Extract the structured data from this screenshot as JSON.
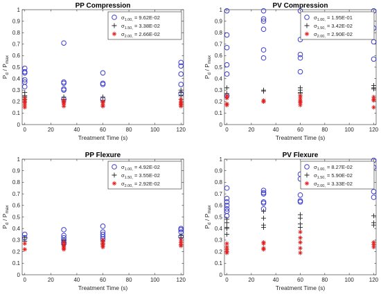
{
  "legend_symbols": [
    "σ",
    "σ",
    "σ"
  ],
  "chart_data": [
    {
      "type": "scatter",
      "title": "PP Compression",
      "xlabel": "Treatment Time (s)",
      "ylabel_main": "P",
      "ylabel_sub": "d",
      "ylabel_sep": " / ",
      "ylabel_main2": "P",
      "ylabel_sub2": "max",
      "xlim": [
        -2,
        122
      ],
      "ylim": [
        0,
        1
      ],
      "xticks": [
        "0",
        "20",
        "40",
        "60",
        "80",
        "100",
        "120"
      ],
      "xtick_values": [
        0,
        20,
        40,
        60,
        80,
        100,
        120
      ],
      "yticks": [
        "0",
        "0.1",
        "0.2",
        "0.3",
        "0.4",
        "0.5",
        "0.6",
        "0.7",
        "0.8",
        "0.9",
        "1"
      ],
      "ytick_values": [
        0,
        0.1,
        0.2,
        0.3,
        0.4,
        0.5,
        0.6,
        0.7,
        0.8,
        0.9,
        1
      ],
      "legend_position": "top-right",
      "series": [
        {
          "name_sub": "1.00",
          "name_suffix": "= 9.62E-02",
          "marker": "circle",
          "color": "#3a3acf",
          "x": [
            0,
            0,
            0,
            0,
            0,
            0,
            30,
            30,
            30,
            30,
            30,
            30,
            60,
            60,
            60,
            60,
            120,
            120,
            120,
            120,
            120
          ],
          "y": [
            0.49,
            0.46,
            0.45,
            0.39,
            0.37,
            0.33,
            0.71,
            0.37,
            0.36,
            0.31,
            0.3,
            0.22,
            0.45,
            0.36,
            0.35,
            0.22,
            0.54,
            0.51,
            0.44,
            0.35,
            0.27
          ]
        },
        {
          "name_sub": "1.50",
          "name_suffix": "= 3.38E-02",
          "marker": "plus",
          "color": "#222222",
          "x": [
            0,
            0,
            0,
            0,
            30,
            30,
            30,
            60,
            60,
            60,
            120,
            120,
            120,
            120
          ],
          "y": [
            0.28,
            0.25,
            0.24,
            0.22,
            0.24,
            0.22,
            0.2,
            0.24,
            0.21,
            0.2,
            0.3,
            0.28,
            0.25,
            0.22
          ]
        },
        {
          "name_sub": "2.00",
          "name_suffix": "= 2.66E-02",
          "marker": "star",
          "color": "#e02020",
          "x": [
            0,
            0,
            0,
            0,
            0,
            0,
            30,
            30,
            30,
            30,
            30,
            60,
            60,
            60,
            60,
            120,
            120,
            120,
            120,
            120,
            120
          ],
          "y": [
            0.23,
            0.21,
            0.2,
            0.19,
            0.17,
            0.15,
            0.21,
            0.2,
            0.19,
            0.18,
            0.16,
            0.2,
            0.19,
            0.17,
            0.16,
            0.22,
            0.2,
            0.19,
            0.18,
            0.17,
            0.16
          ]
        }
      ]
    },
    {
      "type": "scatter",
      "title": "PV Compression",
      "xlabel": "Treatment Time (s)",
      "ylabel_main": "P",
      "ylabel_sub": "d",
      "ylabel_sep": " / ",
      "ylabel_main2": "P",
      "ylabel_sub2": "max",
      "xlim": [
        -2,
        122
      ],
      "ylim": [
        0,
        1
      ],
      "xticks": [
        "0",
        "20",
        "40",
        "60",
        "80",
        "100",
        "120"
      ],
      "xtick_values": [
        0,
        20,
        40,
        60,
        80,
        100,
        120
      ],
      "yticks": [
        "0",
        "0.1",
        "0.2",
        "0.3",
        "0.4",
        "0.5",
        "0.6",
        "0.7",
        "0.8",
        "0.9",
        "1"
      ],
      "ytick_values": [
        0,
        0.1,
        0.2,
        0.3,
        0.4,
        0.5,
        0.6,
        0.7,
        0.8,
        0.9,
        1
      ],
      "legend_position": "top-right",
      "series": [
        {
          "name_sub": "1.00",
          "name_suffix": "= 1.95E-01",
          "marker": "circle",
          "color": "#3a3acf",
          "x": [
            0,
            0,
            0,
            0,
            0,
            0,
            30,
            30,
            30,
            30,
            30,
            30,
            60,
            60,
            60,
            60,
            60,
            120,
            120,
            120,
            120
          ],
          "y": [
            0.99,
            0.78,
            0.67,
            0.52,
            0.44,
            0.25,
            0.99,
            0.92,
            0.9,
            0.83,
            0.65,
            0.58,
            0.99,
            0.74,
            0.61,
            0.58,
            0.46,
            0.99,
            0.84,
            0.72,
            0.57
          ]
        },
        {
          "name_sub": "1.50",
          "name_suffix": "= 3.42E-02",
          "marker": "plus",
          "color": "#222222",
          "x": [
            0,
            0,
            0,
            30,
            30,
            60,
            60,
            60,
            60,
            120,
            120,
            120
          ],
          "y": [
            0.32,
            0.27,
            0.25,
            0.3,
            0.29,
            0.32,
            0.3,
            0.28,
            0.27,
            0.34,
            0.32,
            0.31
          ]
        },
        {
          "name_sub": "2.00",
          "name_suffix": "= 2.90E-02",
          "marker": "star",
          "color": "#e02020",
          "x": [
            0,
            0,
            0,
            0,
            30,
            30,
            30,
            60,
            60,
            60,
            60,
            60,
            60,
            120,
            120,
            120,
            120
          ],
          "y": [
            0.25,
            0.23,
            0.18,
            0.17,
            0.21,
            0.2,
            0.2,
            0.25,
            0.23,
            0.21,
            0.2,
            0.19,
            0.17,
            0.24,
            0.22,
            0.21,
            0.15
          ]
        }
      ]
    },
    {
      "type": "scatter",
      "title": "PP Flexure",
      "xlabel": "Treatment Time (s)",
      "ylabel_main": "P",
      "ylabel_sub": "d",
      "ylabel_sep": " / ",
      "ylabel_main2": "P",
      "ylabel_sub2": "max",
      "xlim": [
        -2,
        122
      ],
      "ylim": [
        0,
        1
      ],
      "xticks": [
        "0",
        "20",
        "40",
        "60",
        "80",
        "100",
        "120"
      ],
      "xtick_values": [
        0,
        20,
        40,
        60,
        80,
        100,
        120
      ],
      "yticks": [
        "0",
        "0.1",
        "0.2",
        "0.3",
        "0.4",
        "0.5",
        "0.6",
        "0.7",
        "0.8",
        "0.9",
        "1"
      ],
      "ytick_values": [
        0,
        0.1,
        0.2,
        0.3,
        0.4,
        0.5,
        0.6,
        0.7,
        0.8,
        0.9,
        1
      ],
      "legend_position": "top-right",
      "series": [
        {
          "name_sub": "1.00",
          "name_suffix": "= 4.92E-02",
          "marker": "circle",
          "color": "#3a3acf",
          "x": [
            0,
            0,
            30,
            30,
            30,
            30,
            30,
            30,
            60,
            60,
            60,
            60,
            60,
            120,
            120,
            120,
            120
          ],
          "y": [
            0.35,
            0.32,
            0.39,
            0.34,
            0.32,
            0.3,
            0.28,
            0.27,
            0.42,
            0.37,
            0.35,
            0.33,
            0.31,
            0.4,
            0.39,
            0.37,
            0.33
          ]
        },
        {
          "name_sub": "1.50",
          "name_suffix": "= 3.55E-02",
          "marker": "plus",
          "color": "#222222",
          "x": [
            0,
            0,
            30,
            30,
            30,
            60,
            60,
            60,
            120,
            120
          ],
          "y": [
            0.32,
            0.29,
            0.3,
            0.28,
            0.26,
            0.3,
            0.29,
            0.27,
            0.34,
            0.32
          ]
        },
        {
          "name_sub": "2.00",
          "name_suffix": "= 2.92E-02",
          "marker": "star",
          "color": "#e02020",
          "x": [
            0,
            0,
            30,
            30,
            30,
            30,
            30,
            30,
            60,
            60,
            60,
            60,
            60,
            120,
            120,
            120,
            120
          ],
          "y": [
            0.27,
            0.22,
            0.28,
            0.26,
            0.25,
            0.24,
            0.23,
            0.22,
            0.3,
            0.28,
            0.26,
            0.25,
            0.24,
            0.3,
            0.28,
            0.26,
            0.25
          ]
        }
      ]
    },
    {
      "type": "scatter",
      "title": "PV Flexure",
      "xlabel": "Treatment Time (s)",
      "ylabel_main": "P",
      "ylabel_sub": "d",
      "ylabel_sep": " / ",
      "ylabel_main2": "P",
      "ylabel_sub2": "max",
      "xlim": [
        -2,
        122
      ],
      "ylim": [
        0,
        1
      ],
      "xticks": [
        "0",
        "20",
        "40",
        "60",
        "80",
        "100",
        "120"
      ],
      "xtick_values": [
        0,
        20,
        40,
        60,
        80,
        100,
        120
      ],
      "yticks": [
        "0",
        "0.1",
        "0.2",
        "0.3",
        "0.4",
        "0.5",
        "0.6",
        "0.7",
        "0.8",
        "0.9",
        "1"
      ],
      "ytick_values": [
        0,
        0.1,
        0.2,
        0.3,
        0.4,
        0.5,
        0.6,
        0.7,
        0.8,
        0.9,
        1
      ],
      "legend_position": "top-right",
      "series": [
        {
          "name_sub": "1.00",
          "name_suffix": "= 8.27E-02",
          "marker": "circle",
          "color": "#3a3acf",
          "x": [
            0,
            0,
            0,
            0,
            0,
            0,
            0,
            30,
            30,
            30,
            30,
            30,
            30,
            60,
            60,
            60,
            60,
            60,
            120,
            120,
            120,
            120
          ],
          "y": [
            0.75,
            0.66,
            0.63,
            0.6,
            0.57,
            0.55,
            0.51,
            0.73,
            0.71,
            0.7,
            0.63,
            0.62,
            0.57,
            0.87,
            0.83,
            0.69,
            0.64,
            0.63,
            0.99,
            0.93,
            0.72,
            0.67
          ]
        },
        {
          "name_sub": "1.50",
          "name_suffix": "= 5.90E-02",
          "marker": "plus",
          "color": "#222222",
          "x": [
            0,
            0,
            0,
            0,
            0,
            30,
            30,
            30,
            30,
            60,
            60,
            60,
            60,
            120,
            120,
            120
          ],
          "y": [
            0.48,
            0.45,
            0.41,
            0.4,
            0.35,
            0.55,
            0.49,
            0.43,
            0.41,
            0.52,
            0.49,
            0.44,
            0.41,
            0.51,
            0.45,
            0.43
          ]
        },
        {
          "name_sub": "2.00",
          "name_suffix": "= 3.33E-02",
          "marker": "star",
          "color": "#e02020",
          "x": [
            0,
            0,
            0,
            0,
            0,
            30,
            30,
            30,
            30,
            60,
            60,
            60,
            60,
            60,
            120,
            120,
            120
          ],
          "y": [
            0.27,
            0.24,
            0.22,
            0.2,
            0.19,
            0.28,
            0.27,
            0.23,
            0.22,
            0.37,
            0.32,
            0.28,
            0.23,
            0.19,
            0.28,
            0.26,
            0.24
          ]
        }
      ]
    }
  ]
}
